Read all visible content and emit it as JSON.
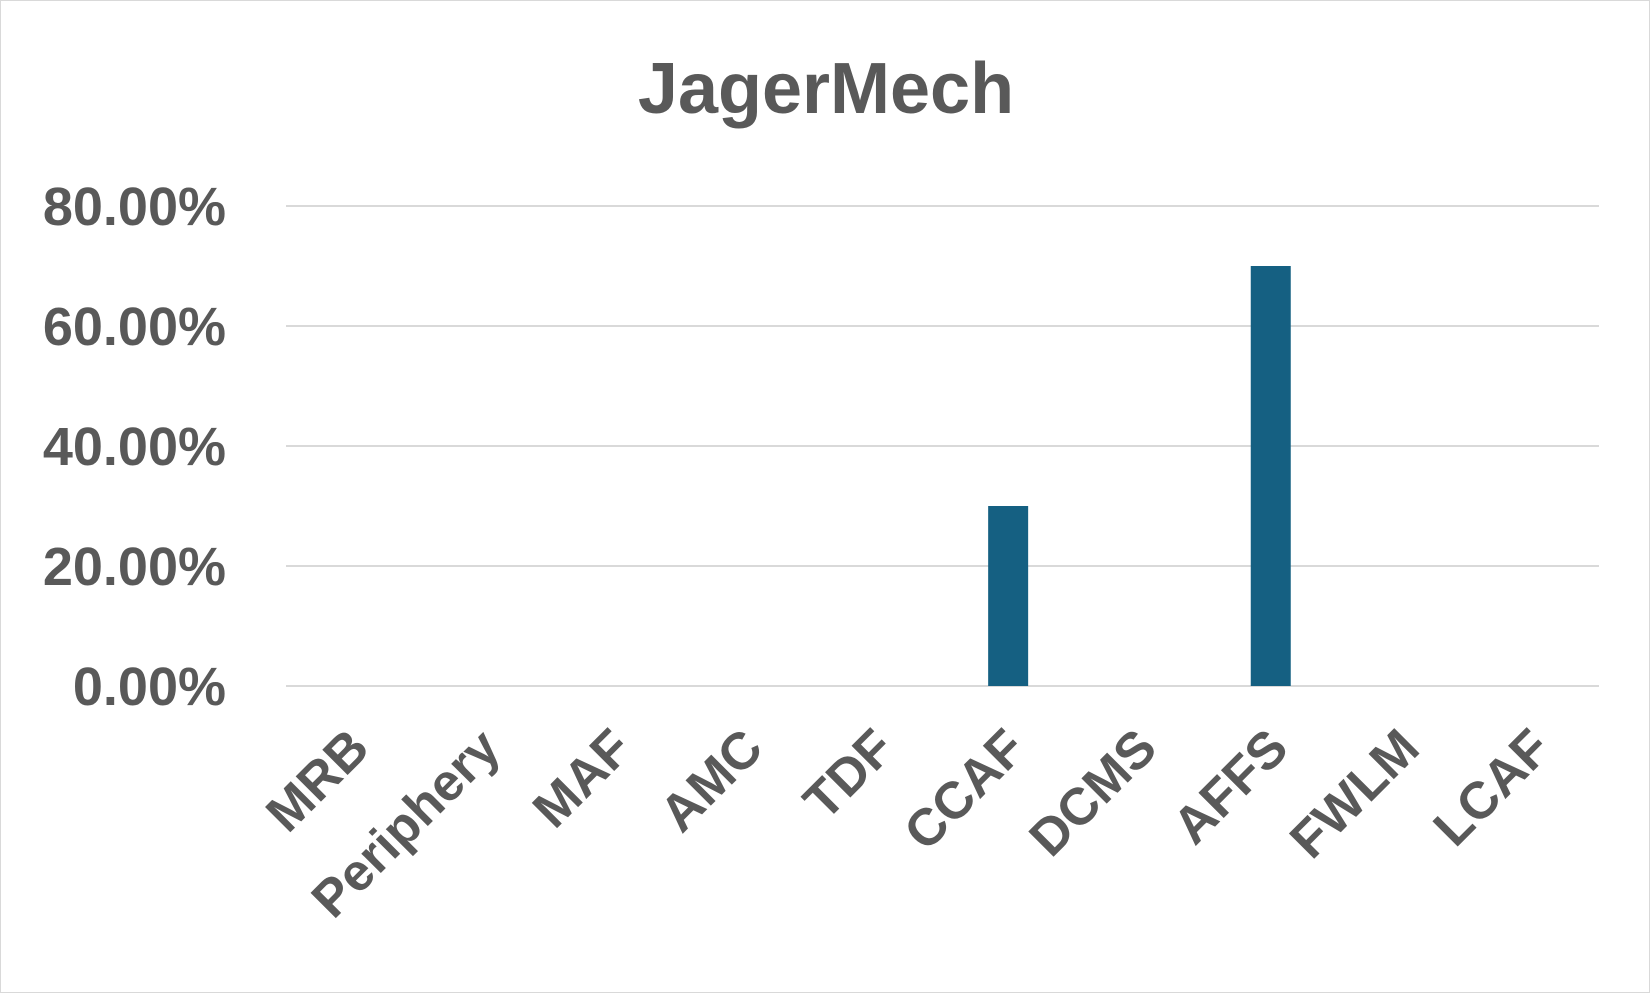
{
  "chart_data": {
    "type": "bar",
    "title": "JagerMech",
    "xlabel": "",
    "ylabel": "",
    "categories": [
      "MRB",
      "Periphery",
      "MAF",
      "AMC",
      "TDF",
      "CCAF",
      "DCMS",
      "AFFS",
      "FWLM",
      "LCAF"
    ],
    "values": [
      0,
      0,
      0,
      0,
      0,
      30,
      0,
      70,
      0,
      0
    ],
    "value_unit": "percent",
    "ylim": [
      0,
      80
    ],
    "y_ticks": [
      "0.00%",
      "20.00%",
      "40.00%",
      "60.00%",
      "80.00%"
    ],
    "y_tick_values": [
      0,
      20,
      40,
      60,
      80
    ],
    "grid": true,
    "legend": "none",
    "bar_color": "#156082",
    "gridline_color": "#d9d9d9",
    "text_color": "#595959"
  }
}
